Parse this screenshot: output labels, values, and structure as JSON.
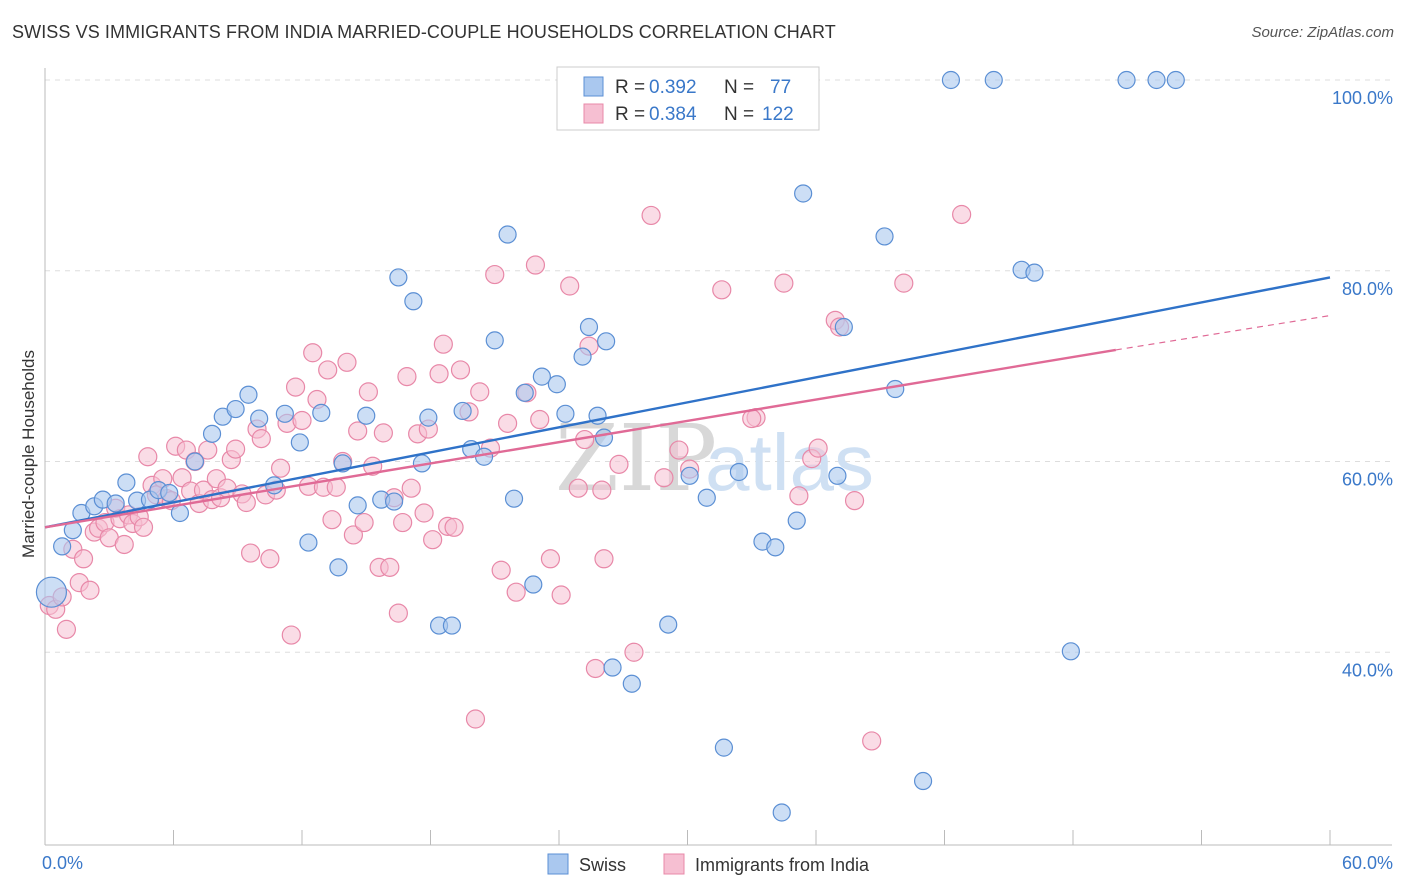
{
  "title": "SWISS VS IMMIGRANTS FROM INDIA MARRIED-COUPLE HOUSEHOLDS CORRELATION CHART",
  "source": "Source: ZipAtlas.com",
  "watermark": {
    "part1": "ZIP",
    "part2": "atlas"
  },
  "legend": {
    "rows": [
      {
        "r_label": "R =",
        "r_value": "0.392",
        "n_label": "N =",
        "n_value": "77"
      },
      {
        "r_label": "R =",
        "r_value": "0.384",
        "n_label": "N =",
        "n_value": "122"
      }
    ]
  },
  "bottom_legend": {
    "series1": "Swiss",
    "series2": "Immigrants from India"
  },
  "colors": {
    "swiss_fill": "#aac8ef",
    "swiss_stroke": "#5b8fd4",
    "swiss_line": "#2f72c8",
    "india_fill": "#f6bfd2",
    "india_stroke": "#e888a8",
    "india_line": "#e06a96",
    "axis_label": "#3a78c9",
    "grid": "#dddddd"
  },
  "chart_data": {
    "type": "scatter",
    "title": "SWISS VS IMMIGRANTS FROM INDIA MARRIED-COUPLE HOUSEHOLDS CORRELATION CHART",
    "xlabel": "",
    "ylabel": "Married-couple Households",
    "xlim": [
      0,
      60
    ],
    "ylim": [
      20,
      100
    ],
    "x_tick_labels": [
      "0.0%",
      "60.0%"
    ],
    "y_ticks": [
      40,
      60,
      80,
      100
    ],
    "y_tick_labels": [
      "40.0%",
      "60.0%",
      "80.0%",
      "100.0%"
    ],
    "grid": true,
    "legend_position": "top-center",
    "series": [
      {
        "name": "Swiss",
        "r": 0.392,
        "n": 77,
        "trend": {
          "x0": 0,
          "y0": 53.1,
          "x1": 60,
          "y1": 79.3
        },
        "points": [
          [
            0.3,
            46.3
          ],
          [
            0.8,
            51.1
          ],
          [
            1.3,
            52.8
          ],
          [
            1.7,
            54.6
          ],
          [
            2.3,
            55.3
          ],
          [
            2.7,
            56.0
          ],
          [
            3.3,
            55.6
          ],
          [
            3.8,
            57.8
          ],
          [
            4.3,
            55.9
          ],
          [
            4.9,
            56.0
          ],
          [
            5.3,
            57.0
          ],
          [
            5.8,
            56.7
          ],
          [
            6.3,
            54.6
          ],
          [
            7.0,
            60.0
          ],
          [
            7.8,
            62.9
          ],
          [
            8.3,
            64.7
          ],
          [
            8.9,
            65.5
          ],
          [
            9.5,
            67.0
          ],
          [
            10.0,
            64.5
          ],
          [
            10.7,
            57.5
          ],
          [
            11.2,
            65.0
          ],
          [
            11.9,
            62.0
          ],
          [
            12.3,
            51.5
          ],
          [
            12.9,
            65.1
          ],
          [
            13.7,
            48.9
          ],
          [
            13.9,
            59.8
          ],
          [
            14.6,
            55.4
          ],
          [
            15.0,
            64.8
          ],
          [
            15.7,
            56.0
          ],
          [
            16.3,
            55.8
          ],
          [
            16.5,
            79.3
          ],
          [
            17.2,
            76.8
          ],
          [
            17.6,
            59.8
          ],
          [
            17.9,
            64.6
          ],
          [
            18.4,
            42.8
          ],
          [
            19.0,
            42.8
          ],
          [
            19.5,
            65.3
          ],
          [
            19.9,
            61.3
          ],
          [
            20.5,
            60.5
          ],
          [
            21.0,
            72.7
          ],
          [
            21.6,
            83.8
          ],
          [
            21.9,
            56.1
          ],
          [
            22.4,
            67.2
          ],
          [
            22.8,
            47.1
          ],
          [
            23.2,
            68.9
          ],
          [
            23.9,
            68.1
          ],
          [
            24.3,
            65.0
          ],
          [
            25.1,
            71.0
          ],
          [
            25.4,
            74.1
          ],
          [
            25.8,
            64.8
          ],
          [
            26.2,
            72.6
          ],
          [
            26.5,
            38.4
          ],
          [
            27.4,
            36.7
          ],
          [
            29.1,
            42.9
          ],
          [
            30.1,
            58.5
          ],
          [
            30.9,
            56.2
          ],
          [
            32.4,
            58.9
          ],
          [
            33.5,
            51.6
          ],
          [
            34.1,
            51.0
          ],
          [
            35.1,
            53.8
          ],
          [
            35.4,
            88.1
          ],
          [
            37.0,
            58.5
          ],
          [
            37.3,
            74.1
          ],
          [
            39.2,
            83.6
          ],
          [
            39.7,
            67.6
          ],
          [
            41.0,
            26.5
          ],
          [
            42.3,
            100.0
          ],
          [
            44.3,
            100.0
          ],
          [
            45.6,
            80.1
          ],
          [
            46.2,
            79.8
          ],
          [
            47.9,
            40.1
          ],
          [
            50.5,
            100.0
          ],
          [
            51.9,
            100.0
          ],
          [
            52.8,
            100.0
          ],
          [
            34.4,
            23.2
          ],
          [
            31.7,
            30.0
          ],
          [
            26.1,
            62.5
          ]
        ]
      },
      {
        "name": "Immigrants from India",
        "r": 0.384,
        "n": 122,
        "trend": {
          "x0": 0,
          "y0": 53.1,
          "x1": 50.0,
          "y1": 71.7
        },
        "trend_dashed": {
          "x0": 50.0,
          "y0": 71.7,
          "x1": 60,
          "y1": 75.3
        },
        "points": [
          [
            0.2,
            44.9
          ],
          [
            0.5,
            44.5
          ],
          [
            0.8,
            45.8
          ],
          [
            1.0,
            42.4
          ],
          [
            1.3,
            50.8
          ],
          [
            1.6,
            47.3
          ],
          [
            1.8,
            49.8
          ],
          [
            2.1,
            46.5
          ],
          [
            2.3,
            52.6
          ],
          [
            2.5,
            53.0
          ],
          [
            2.8,
            53.6
          ],
          [
            3.0,
            52.0
          ],
          [
            3.3,
            55.1
          ],
          [
            3.5,
            54.0
          ],
          [
            3.7,
            51.3
          ],
          [
            3.9,
            54.4
          ],
          [
            4.1,
            53.5
          ],
          [
            4.4,
            54.2
          ],
          [
            4.6,
            53.1
          ],
          [
            4.8,
            60.5
          ],
          [
            5.0,
            57.5
          ],
          [
            5.2,
            56.5
          ],
          [
            5.5,
            58.2
          ],
          [
            5.7,
            56.1
          ],
          [
            5.9,
            55.9
          ],
          [
            6.1,
            61.6
          ],
          [
            6.4,
            58.3
          ],
          [
            6.6,
            61.2
          ],
          [
            6.8,
            56.9
          ],
          [
            7.0,
            60.0
          ],
          [
            7.2,
            55.6
          ],
          [
            7.4,
            57.0
          ],
          [
            7.6,
            61.2
          ],
          [
            7.8,
            56.0
          ],
          [
            8.0,
            58.2
          ],
          [
            8.2,
            56.2
          ],
          [
            8.5,
            57.2
          ],
          [
            8.7,
            60.2
          ],
          [
            8.9,
            61.3
          ],
          [
            9.2,
            56.6
          ],
          [
            9.4,
            55.7
          ],
          [
            9.6,
            50.4
          ],
          [
            9.9,
            63.4
          ],
          [
            10.1,
            62.4
          ],
          [
            10.3,
            56.5
          ],
          [
            10.5,
            49.8
          ],
          [
            10.8,
            57.0
          ],
          [
            11.0,
            59.3
          ],
          [
            11.3,
            64.0
          ],
          [
            11.5,
            41.8
          ],
          [
            11.7,
            67.8
          ],
          [
            12.0,
            64.3
          ],
          [
            12.3,
            57.4
          ],
          [
            12.5,
            71.4
          ],
          [
            12.7,
            66.5
          ],
          [
            13.0,
            57.3
          ],
          [
            13.2,
            69.6
          ],
          [
            13.4,
            53.9
          ],
          [
            13.6,
            57.3
          ],
          [
            13.9,
            60.0
          ],
          [
            14.1,
            70.4
          ],
          [
            14.4,
            52.3
          ],
          [
            14.6,
            63.2
          ],
          [
            14.9,
            53.6
          ],
          [
            15.1,
            67.3
          ],
          [
            15.3,
            59.5
          ],
          [
            15.6,
            48.9
          ],
          [
            15.8,
            63.0
          ],
          [
            16.1,
            48.9
          ],
          [
            16.3,
            56.2
          ],
          [
            16.5,
            44.1
          ],
          [
            16.7,
            53.6
          ],
          [
            16.9,
            68.9
          ],
          [
            17.1,
            57.2
          ],
          [
            17.4,
            62.9
          ],
          [
            17.7,
            54.6
          ],
          [
            17.9,
            63.4
          ],
          [
            18.1,
            51.8
          ],
          [
            18.4,
            69.2
          ],
          [
            18.6,
            72.3
          ],
          [
            18.8,
            53.2
          ],
          [
            19.1,
            53.1
          ],
          [
            19.4,
            69.6
          ],
          [
            19.8,
            65.2
          ],
          [
            20.1,
            33.0
          ],
          [
            20.3,
            67.3
          ],
          [
            20.8,
            61.4
          ],
          [
            21.0,
            79.6
          ],
          [
            21.3,
            48.6
          ],
          [
            21.6,
            64.0
          ],
          [
            22.0,
            46.3
          ],
          [
            22.5,
            67.2
          ],
          [
            22.9,
            80.6
          ],
          [
            23.1,
            64.4
          ],
          [
            23.6,
            49.8
          ],
          [
            24.1,
            46.0
          ],
          [
            24.5,
            78.4
          ],
          [
            24.9,
            57.2
          ],
          [
            25.2,
            62.3
          ],
          [
            25.4,
            72.1
          ],
          [
            25.7,
            38.3
          ],
          [
            26.1,
            49.8
          ],
          [
            26.8,
            59.7
          ],
          [
            27.5,
            40.0
          ],
          [
            28.3,
            85.8
          ],
          [
            28.9,
            58.3
          ],
          [
            29.6,
            61.2
          ],
          [
            30.1,
            59.2
          ],
          [
            31.6,
            78.0
          ],
          [
            33.2,
            64.6
          ],
          [
            34.5,
            78.7
          ],
          [
            35.2,
            56.4
          ],
          [
            35.8,
            60.3
          ],
          [
            36.1,
            61.4
          ],
          [
            36.9,
            74.8
          ],
          [
            37.1,
            74.1
          ],
          [
            37.8,
            55.9
          ],
          [
            38.6,
            30.7
          ],
          [
            40.1,
            78.7
          ],
          [
            42.8,
            85.9
          ],
          [
            33.0,
            64.5
          ],
          [
            26.0,
            57.0
          ]
        ]
      }
    ]
  }
}
